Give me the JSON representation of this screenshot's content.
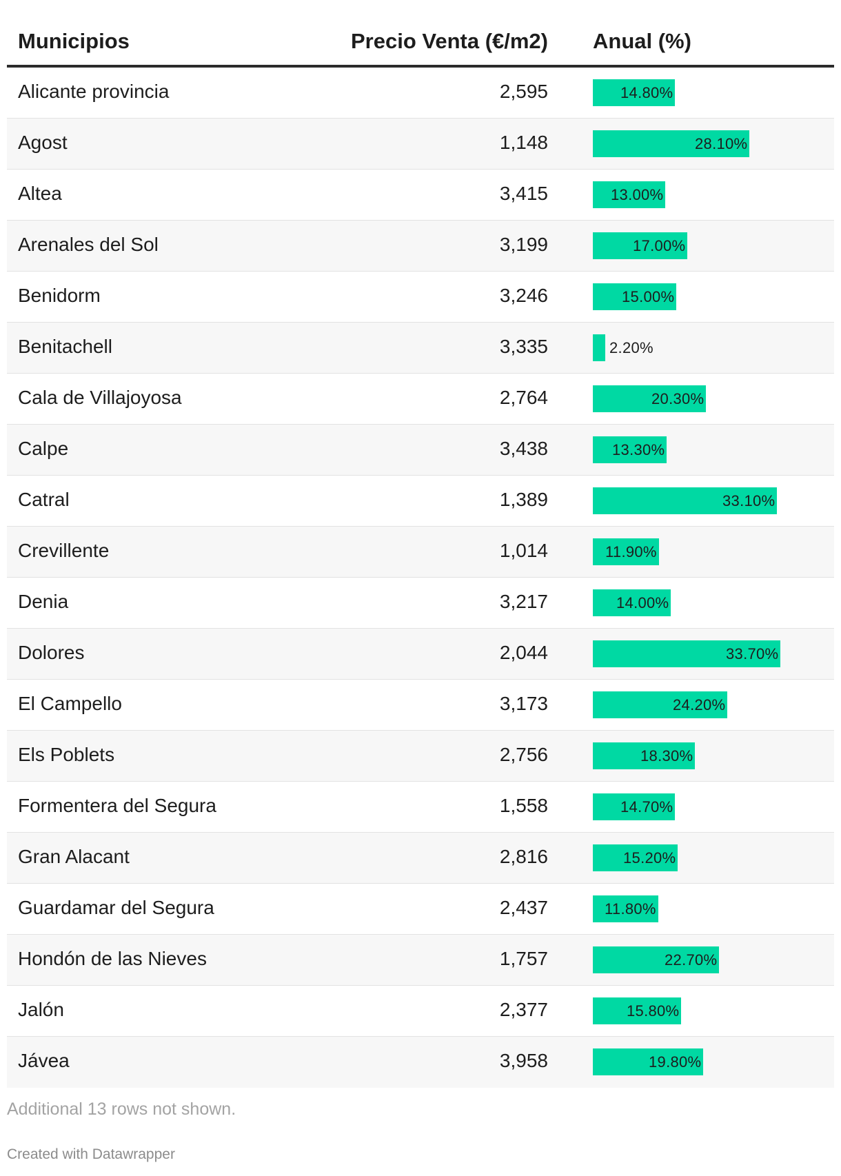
{
  "chart_data": {
    "type": "table",
    "columns": [
      "Municipios",
      "Precio Venta (€/m2)",
      "Anual (%)"
    ],
    "rows": [
      {
        "municipio": "Alicante provincia",
        "precio": "2,595",
        "anual": 14.8,
        "anual_label": "14.80%"
      },
      {
        "municipio": "Agost",
        "precio": "1,148",
        "anual": 28.1,
        "anual_label": "28.10%"
      },
      {
        "municipio": "Altea",
        "precio": "3,415",
        "anual": 13.0,
        "anual_label": "13.00%"
      },
      {
        "municipio": "Arenales del Sol",
        "precio": "3,199",
        "anual": 17.0,
        "anual_label": "17.00%"
      },
      {
        "municipio": "Benidorm",
        "precio": "3,246",
        "anual": 15.0,
        "anual_label": "15.00%"
      },
      {
        "municipio": "Benitachell",
        "precio": "3,335",
        "anual": 2.2,
        "anual_label": "2.20%"
      },
      {
        "municipio": "Cala de Villajoyosa",
        "precio": "2,764",
        "anual": 20.3,
        "anual_label": "20.30%"
      },
      {
        "municipio": "Calpe",
        "precio": "3,438",
        "anual": 13.3,
        "anual_label": "13.30%"
      },
      {
        "municipio": "Catral",
        "precio": "1,389",
        "anual": 33.1,
        "anual_label": "33.10%"
      },
      {
        "municipio": "Crevillente",
        "precio": "1,014",
        "anual": 11.9,
        "anual_label": "11.90%"
      },
      {
        "municipio": "Denia",
        "precio": "3,217",
        "anual": 14.0,
        "anual_label": "14.00%"
      },
      {
        "municipio": "Dolores",
        "precio": "2,044",
        "anual": 33.7,
        "anual_label": "33.70%"
      },
      {
        "municipio": "El Campello",
        "precio": "3,173",
        "anual": 24.2,
        "anual_label": "24.20%"
      },
      {
        "municipio": "Els Poblets",
        "precio": "2,756",
        "anual": 18.3,
        "anual_label": "18.30%"
      },
      {
        "municipio": "Formentera del Segura",
        "precio": "1,558",
        "anual": 14.7,
        "anual_label": "14.70%"
      },
      {
        "municipio": "Gran Alacant",
        "precio": "2,816",
        "anual": 15.2,
        "anual_label": "15.20%"
      },
      {
        "municipio": "Guardamar del Segura",
        "precio": "2,437",
        "anual": 11.8,
        "anual_label": "11.80%"
      },
      {
        "municipio": "Hondón de las Nieves",
        "precio": "1,757",
        "anual": 22.7,
        "anual_label": "22.70%"
      },
      {
        "municipio": "Jalón",
        "precio": "2,377",
        "anual": 15.8,
        "anual_label": "15.80%"
      },
      {
        "municipio": "Jávea",
        "precio": "3,958",
        "anual": 19.8,
        "anual_label": "19.80%"
      }
    ],
    "bar_color": "#00d9a3"
  },
  "footer": {
    "note": "Additional 13 rows not shown.",
    "credit": "Created with Datawrapper"
  }
}
